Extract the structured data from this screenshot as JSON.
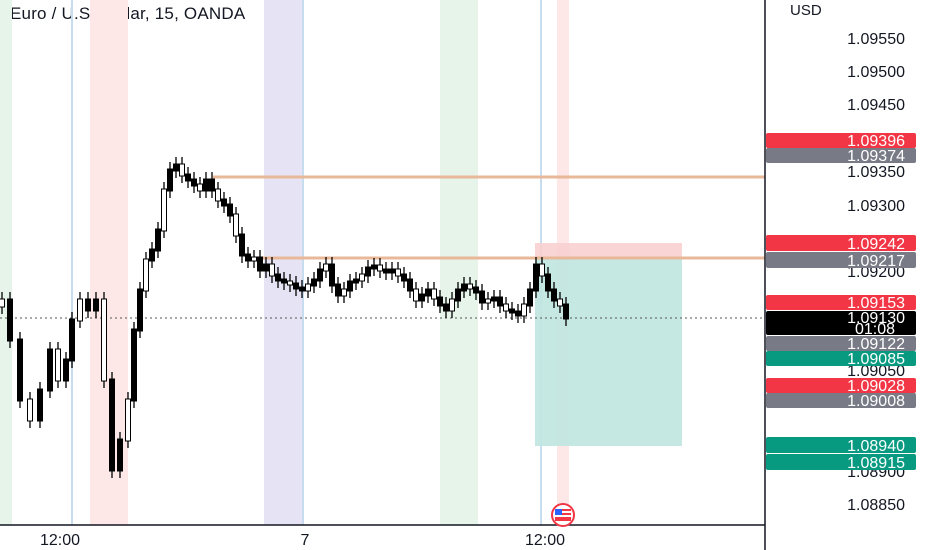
{
  "header": {
    "symbol_title": "Euro / U.S. Dollar, 15, OANDA",
    "currency": "USD"
  },
  "price_axis": {
    "ticks": [
      "1.09550",
      "1.09500",
      "1.09450",
      "1.09350",
      "1.09300",
      "1.09200",
      "1.09050",
      "1.08900",
      "1.08850"
    ]
  },
  "time_axis": {
    "ticks": [
      "12:00",
      "7",
      "12:00"
    ]
  },
  "price_tags": [
    {
      "label": "1.09396",
      "color": "#f23645"
    },
    {
      "label": "1.09374",
      "color": "#787b86"
    },
    {
      "label": "1.09242",
      "color": "#f23645"
    },
    {
      "label": "1.09217",
      "color": "#787b86"
    },
    {
      "label": "1.09153",
      "color": "#f23645"
    },
    {
      "label": "1.09130",
      "sublabel": "01:08",
      "color": "#000000"
    },
    {
      "label": "1.09122",
      "color": "#787b86"
    },
    {
      "label": "1.09085",
      "color": "#089981"
    },
    {
      "label": "1.09028",
      "color": "#f23645"
    },
    {
      "label": "1.09008",
      "color": "#787b86"
    },
    {
      "label": "1.08940",
      "color": "#089981"
    },
    {
      "label": "1.08915",
      "color": "#089981"
    }
  ],
  "colors": {
    "stop_zone": "#f8d0d0",
    "target_zone": "#bfe6e0",
    "resistance_line": "#e8b899",
    "candles": "#000000"
  },
  "icons": {
    "flag": "us-flag-icon"
  }
}
